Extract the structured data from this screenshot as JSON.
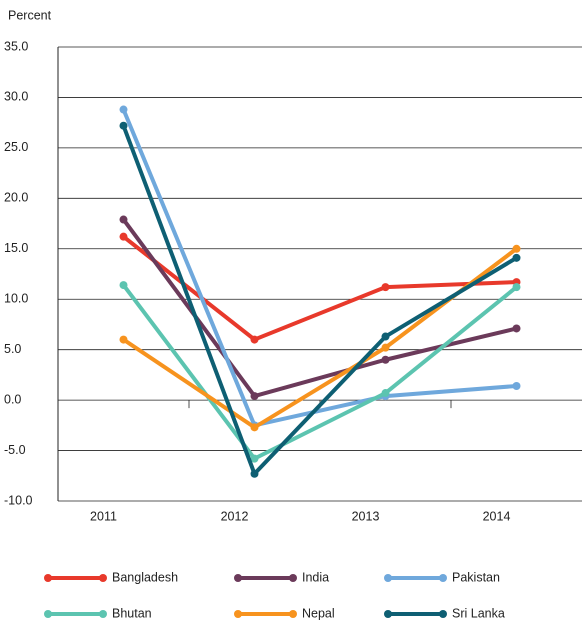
{
  "chart_data": {
    "type": "line",
    "y_label": "Percent",
    "categories": [
      "2011",
      "2012",
      "2013",
      "2014"
    ],
    "series": [
      {
        "name": "Bangladesh",
        "color": "#e8392b",
        "values": [
          16.2,
          6.0,
          11.2,
          11.7
        ]
      },
      {
        "name": "India",
        "color": "#6b3a5a",
        "values": [
          17.9,
          0.4,
          4.0,
          7.1
        ]
      },
      {
        "name": "Pakistan",
        "color": "#6fa8dc",
        "values": [
          28.8,
          -2.5,
          0.4,
          1.4
        ]
      },
      {
        "name": "Bhutan",
        "color": "#5cc4b0",
        "values": [
          11.4,
          -5.8,
          0.7,
          11.2
        ]
      },
      {
        "name": "Nepal",
        "color": "#f7931e",
        "values": [
          6.0,
          -2.7,
          5.2,
          15.0
        ]
      },
      {
        "name": "Sri Lanka",
        "color": "#0e5f73",
        "values": [
          27.2,
          -7.3,
          6.3,
          14.1
        ]
      }
    ],
    "ylim": [
      -10,
      35
    ],
    "yticks": [
      {
        "value": -10,
        "label": "-10.0"
      },
      {
        "value": -5,
        "label": "-5.0"
      },
      {
        "value": 0,
        "label": "0.0"
      },
      {
        "value": 5,
        "label": "5.0"
      },
      {
        "value": 10,
        "label": "10.0"
      },
      {
        "value": 15,
        "label": "15.0"
      },
      {
        "value": 20,
        "label": "20.0"
      },
      {
        "value": 25,
        "label": "25.0"
      },
      {
        "value": 30,
        "label": "30.0"
      },
      {
        "value": 35,
        "label": "35.0"
      }
    ],
    "grid": true,
    "legend": "bottom"
  }
}
